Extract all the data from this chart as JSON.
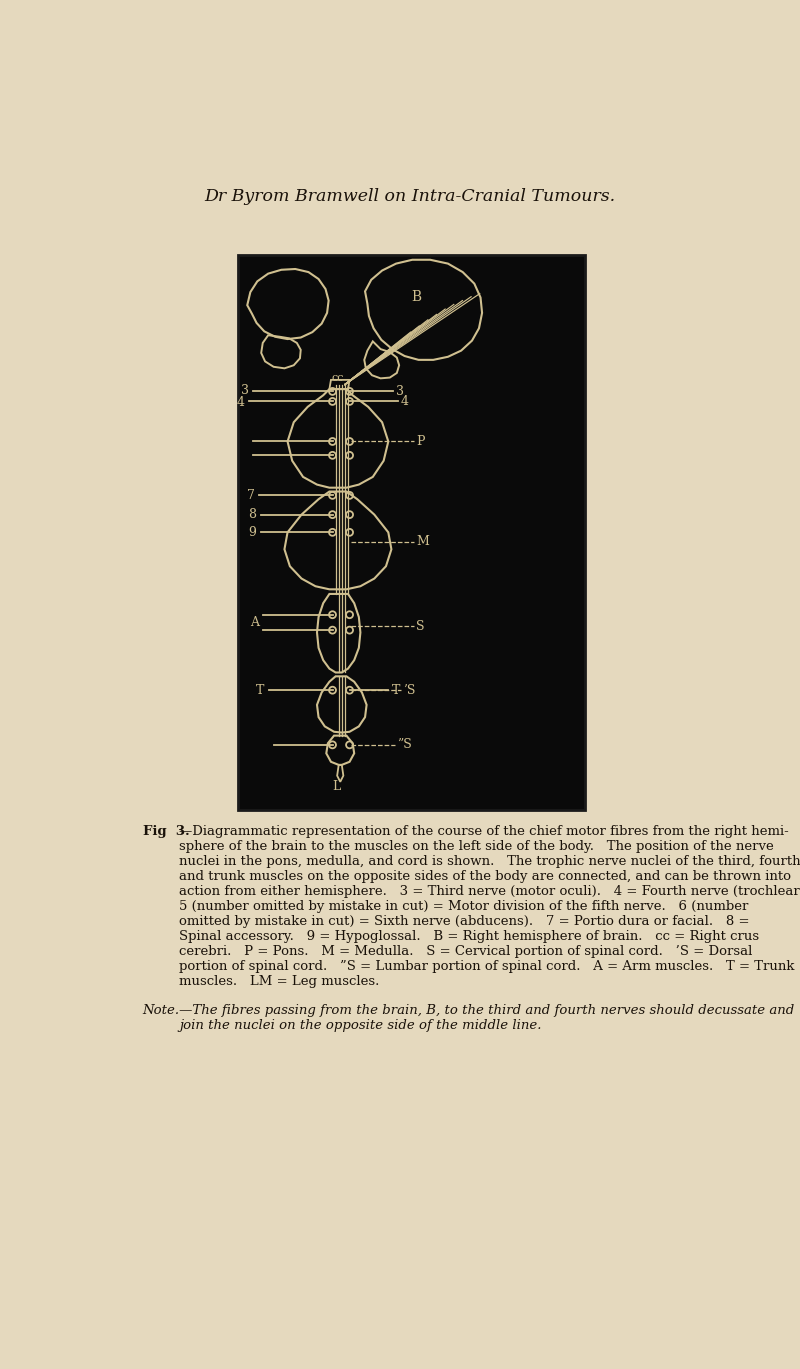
{
  "bg_color": "#e5d9be",
  "diagram_bg": "#0a0a0a",
  "line_color": "#d0c090",
  "title": "Dr Byrom Bramwell on Intra-Cranial Tumours.",
  "cap_fig": "Fig  3.",
  "cap_body": [
    "—Diagrammatic representation of the course of the chief motor fibres from the right hemi-",
    "sphere of the brain to the muscles on the left side of the body.   The position of the nerve",
    "nuclei in the pons, medulla, and cord is shown.   The trophic nerve nuclei of the third, fourth,",
    "and trunk muscles on the opposite sides of the body are connected, and can be thrown into",
    "action from either hemisphere.   3 = Third nerve (motor oculi).   4 = Fourth nerve (trochlear).",
    "5 (number omitted by mistake in cut) = Motor division of the fifth nerve.   6 (number",
    "omitted by mistake in cut) = Sixth nerve (abducens).   7 = Portio dura or facial.   8 =",
    "Spinal accessory.   9 = Hypoglossal.   B = Right hemisphere of brain.   cc = Right crus",
    "cerebri.   P = Pons.   M = Medulla.   S = Cervical portion of spinal cord.   ’S = Dorsal",
    "portion of spinal cord.   ”S = Lumbar portion of spinal cord.   A = Arm muscles.   T = Trunk",
    "muscles.   LM = Leg muscles."
  ],
  "note_lines": [
    "Note.—The fibres passing from the brain, B, to the third and fourth nerves should decussate and",
    "join the nuclei on the opposite side of the middle line."
  ]
}
